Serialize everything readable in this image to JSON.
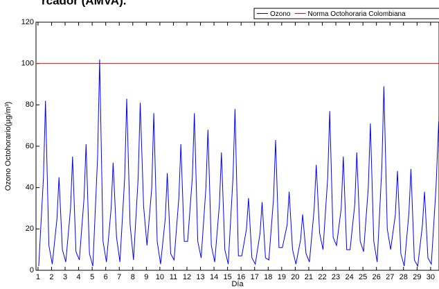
{
  "chart_data": {
    "type": "line",
    "title": "rcador (AMVA).",
    "xlabel": "Día",
    "ylabel": "Ozono Octohorario(µg/m³)",
    "xlim": [
      0.85,
      30.62
    ],
    "ylim": [
      0,
      120
    ],
    "xticks": [
      1,
      2,
      3,
      4,
      5,
      6,
      7,
      8,
      9,
      10,
      11,
      12,
      13,
      14,
      15,
      16,
      17,
      18,
      19,
      20,
      21,
      22,
      23,
      24,
      25,
      26,
      27,
      28,
      29,
      30
    ],
    "yticks": [
      0,
      20,
      40,
      60,
      80,
      100,
      120
    ],
    "grid": false,
    "legend": "top-right",
    "reference_line": {
      "name": "Norma Octohoraria Colombiana",
      "value": 100,
      "color": "#ff0000"
    },
    "series": [
      {
        "name": "Ozono",
        "color": "#0000ff",
        "x": [
          1.05,
          1.4,
          1.55,
          1.8,
          2.05,
          2.4,
          2.55,
          2.8,
          3.05,
          3.4,
          3.55,
          3.8,
          4.05,
          4.4,
          4.55,
          4.8,
          5.05,
          5.4,
          5.55,
          5.8,
          6.05,
          6.4,
          6.55,
          6.8,
          7.05,
          7.4,
          7.55,
          7.8,
          8.05,
          8.4,
          8.55,
          8.8,
          9.05,
          9.4,
          9.55,
          9.8,
          10.05,
          10.4,
          10.55,
          10.8,
          11.05,
          11.4,
          11.55,
          11.8,
          12.05,
          12.4,
          12.55,
          12.8,
          13.05,
          13.4,
          13.55,
          13.8,
          14.05,
          14.4,
          14.55,
          14.8,
          15.05,
          15.4,
          15.55,
          15.8,
          16.05,
          16.4,
          16.55,
          16.8,
          17.05,
          17.4,
          17.55,
          17.8,
          18.05,
          18.4,
          18.55,
          18.8,
          19.05,
          19.4,
          19.55,
          19.8,
          20.05,
          20.4,
          20.55,
          20.8,
          21.05,
          21.4,
          21.55,
          21.8,
          22.05,
          22.4,
          22.55,
          22.8,
          23.05,
          23.4,
          23.55,
          23.8,
          24.05,
          24.4,
          24.55,
          24.8,
          25.05,
          25.4,
          25.55,
          25.8,
          26.05,
          26.4,
          26.55,
          26.8,
          27.05,
          27.4,
          27.55,
          27.8,
          28.05,
          28.4,
          28.55,
          28.8,
          29.05,
          29.4,
          29.55,
          29.8,
          30.05,
          30.4,
          30.6
        ],
        "values": [
          2,
          45,
          82,
          12,
          3,
          25,
          45,
          10,
          4,
          30,
          55,
          9,
          5,
          35,
          61,
          8,
          2,
          55,
          102,
          14,
          4,
          30,
          52,
          16,
          4,
          45,
          83,
          22,
          5,
          45,
          81,
          31,
          12,
          40,
          76,
          14,
          3,
          25,
          47,
          8,
          5,
          35,
          61,
          14,
          14,
          45,
          76,
          14,
          6,
          40,
          68,
          12,
          4,
          32,
          57,
          10,
          3,
          45,
          78,
          7,
          7,
          20,
          35,
          6,
          3,
          18,
          33,
          6,
          5,
          35,
          63,
          11,
          11,
          22,
          38,
          10,
          3,
          15,
          27,
          8,
          4,
          30,
          51,
          18,
          10,
          45,
          77,
          16,
          12,
          30,
          55,
          10,
          10,
          32,
          57,
          14,
          9,
          40,
          71,
          14,
          4,
          50,
          89,
          20,
          10,
          27,
          48,
          8,
          2,
          28,
          49,
          5,
          2,
          22,
          38,
          6,
          3,
          40,
          72
        ]
      }
    ]
  }
}
